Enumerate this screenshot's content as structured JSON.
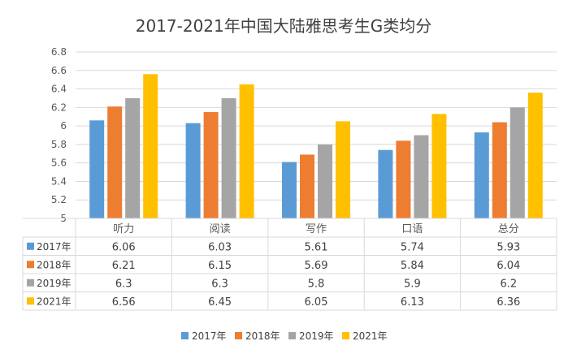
{
  "chart_data": {
    "type": "bar",
    "title": "2017-2021年中国大陆雅思考生G类均分",
    "categories": [
      "听力",
      "阅读",
      "写作",
      "口语",
      "总分"
    ],
    "series": [
      {
        "name": "2017年",
        "values": [
          6.06,
          6.03,
          5.61,
          5.74,
          5.93
        ],
        "color": "#5B9BD5"
      },
      {
        "name": "2018年",
        "values": [
          6.21,
          6.15,
          5.69,
          5.84,
          6.04
        ],
        "color": "#ED7D31"
      },
      {
        "name": "2019年",
        "values": [
          6.3,
          6.3,
          5.8,
          5.9,
          6.2
        ],
        "color": "#A5A5A5"
      },
      {
        "name": "2021年",
        "values": [
          6.56,
          6.45,
          6.05,
          6.13,
          6.36
        ],
        "color": "#FFC000"
      }
    ],
    "y_ticks": [
      "5",
      "5.2",
      "5.4",
      "5.6",
      "5.8",
      "6",
      "6.2",
      "6.4",
      "6.6",
      "6.8"
    ],
    "ylim": [
      5,
      6.8
    ],
    "grid": true,
    "legend_position": "bottom",
    "data_table": true
  }
}
